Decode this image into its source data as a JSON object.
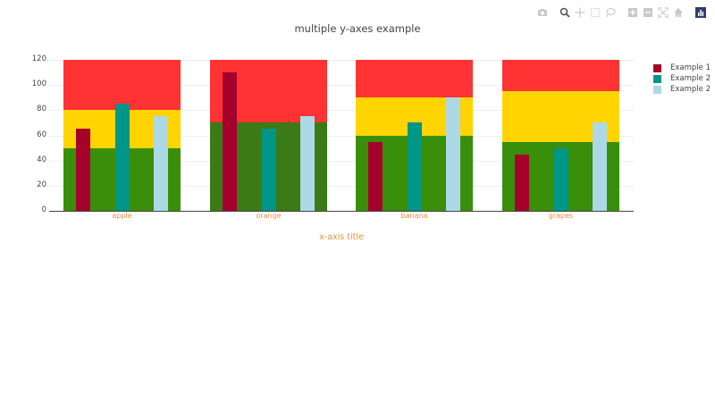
{
  "modebar": {
    "buttons": [
      "camera-icon",
      "zoom-icon",
      "pan-icon",
      "box-select-icon",
      "lasso-icon",
      "zoom-in-icon",
      "zoom-out-icon",
      "autoscale-icon",
      "reset-axes-icon",
      "plotly-logo-icon"
    ]
  },
  "chart_data": {
    "type": "bar",
    "title": "multiple y-axes example",
    "xlabel": "x-axis title",
    "ylabel": "",
    "categories": [
      "apple",
      "orange",
      "banana",
      "grapes"
    ],
    "ylim": [
      0,
      120
    ],
    "yticks": [
      0,
      20,
      40,
      60,
      80,
      100,
      120
    ],
    "grid": true,
    "legend_position": "right",
    "background_bands": {
      "description": "stacked background bars per category (green / yellow / red bands)",
      "green": [
        50,
        70,
        60,
        55
      ],
      "yellow": [
        30,
        0,
        30,
        40
      ],
      "red": [
        40,
        50,
        30,
        25
      ],
      "colors": {
        "green": "#3a8f0a",
        "green_orange": "#3b7a15",
        "yellow": "#ffd400",
        "red": "#ff3333"
      }
    },
    "series": [
      {
        "name": "Example 1",
        "color": "#a6002c",
        "values": [
          65,
          110,
          55,
          45
        ]
      },
      {
        "name": "Example 2",
        "color": "#009688",
        "values": [
          85,
          65,
          70,
          50
        ]
      },
      {
        "name": "Example 2",
        "color": "#add8e6",
        "values": [
          75,
          75,
          90,
          70
        ]
      }
    ]
  }
}
